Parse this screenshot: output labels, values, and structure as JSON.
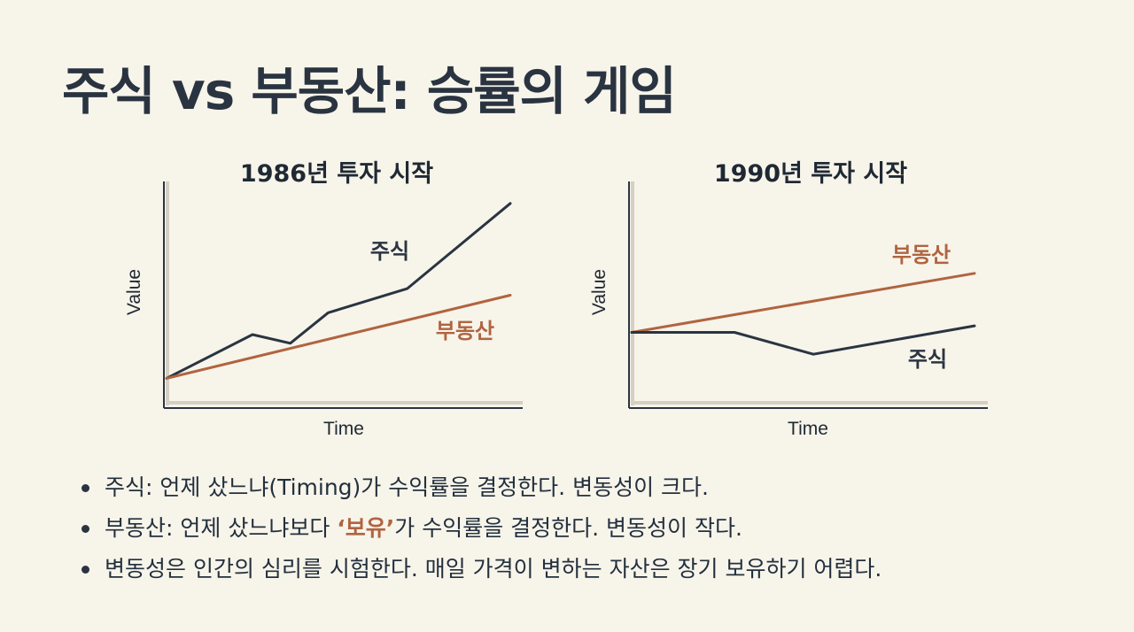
{
  "title": "주식 vs 부동산: 승률의 게임",
  "colors": {
    "stock": "#2a3441",
    "real_estate": "#b06440",
    "axis": "#2a3441"
  },
  "chart_data": [
    {
      "type": "line",
      "title": "1986년 투자 시작",
      "xlabel": "Time",
      "ylabel": "Value",
      "xlim": [
        0,
        10
      ],
      "ylim": [
        0,
        10
      ],
      "series": [
        {
          "name": "주식",
          "x": [
            0,
            2.5,
            3.6,
            4.7,
            7.0,
            10.0
          ],
          "y": [
            1.2,
            3.2,
            2.8,
            4.2,
            5.3,
            9.2
          ]
        },
        {
          "name": "부동산",
          "x": [
            0,
            10
          ],
          "y": [
            1.2,
            5.0
          ]
        }
      ]
    },
    {
      "type": "line",
      "title": "1990년 투자 시작",
      "xlabel": "Time",
      "ylabel": "Value",
      "xlim": [
        0,
        10
      ],
      "ylim": [
        0,
        10
      ],
      "series": [
        {
          "name": "부동산",
          "x": [
            0,
            10
          ],
          "y": [
            3.3,
            6.0
          ]
        },
        {
          "name": "주식",
          "x": [
            0,
            3.0,
            5.3,
            10.0
          ],
          "y": [
            3.3,
            3.3,
            2.3,
            3.6
          ]
        }
      ]
    }
  ],
  "bullets": [
    {
      "text": "주식: 언제 샀느냐(Timing)가 수익률을 결정한다. 변동성이 크다."
    },
    {
      "before": "부동산: 언제 샀느냐보다 ",
      "accent": "‘보유’",
      "after": "가 수익률을 결정한다. 변동성이 작다."
    },
    {
      "text": "변동성은 인간의 심리를 시험한다. 매일 가격이 변하는 자산은 장기 보유하기 어렵다."
    }
  ]
}
